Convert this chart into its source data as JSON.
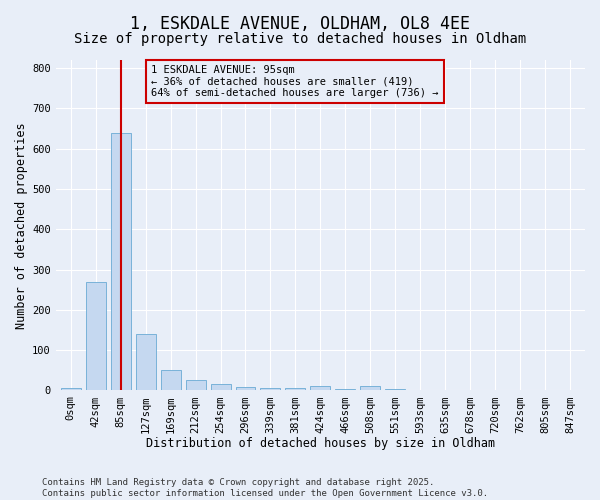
{
  "title_line1": "1, ESKDALE AVENUE, OLDHAM, OL8 4EE",
  "title_line2": "Size of property relative to detached houses in Oldham",
  "xlabel": "Distribution of detached houses by size in Oldham",
  "ylabel": "Number of detached properties",
  "bar_labels": [
    "0sqm",
    "42sqm",
    "85sqm",
    "127sqm",
    "169sqm",
    "212sqm",
    "254sqm",
    "296sqm",
    "339sqm",
    "381sqm",
    "424sqm",
    "466sqm",
    "508sqm",
    "551sqm",
    "593sqm",
    "635sqm",
    "678sqm",
    "720sqm",
    "762sqm",
    "805sqm",
    "847sqm"
  ],
  "bar_values": [
    5,
    270,
    640,
    140,
    50,
    25,
    15,
    8,
    5,
    5,
    12,
    3,
    10,
    3,
    2,
    2,
    1,
    0,
    0,
    0,
    0
  ],
  "bar_color": "#c5d8f0",
  "bar_edge_color": "#6aaad4",
  "property_bin_index": 2,
  "vline_color": "#cc0000",
  "annotation_text": "1 ESKDALE AVENUE: 95sqm\n← 36% of detached houses are smaller (419)\n64% of semi-detached houses are larger (736) →",
  "annotation_box_color": "#cc0000",
  "ylim": [
    0,
    820
  ],
  "yticks": [
    0,
    100,
    200,
    300,
    400,
    500,
    600,
    700,
    800
  ],
  "footer_text": "Contains HM Land Registry data © Crown copyright and database right 2025.\nContains public sector information licensed under the Open Government Licence v3.0.",
  "background_color": "#e8eef8",
  "grid_color": "#ffffff",
  "title_fontsize": 12,
  "subtitle_fontsize": 10,
  "axis_label_fontsize": 8.5,
  "tick_fontsize": 7.5,
  "annotation_fontsize": 7.5,
  "footer_fontsize": 6.5
}
